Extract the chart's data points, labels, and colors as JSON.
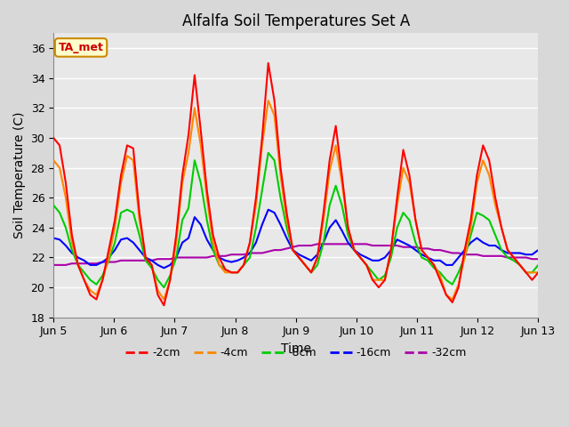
{
  "title": "Alfalfa Soil Temperatures Set A",
  "xlabel": "Time",
  "ylabel": "Soil Temperature (C)",
  "annotation": "TA_met",
  "annotation_color": "#cc0000",
  "annotation_bg": "#ffffcc",
  "annotation_border": "#cc8800",
  "ylim": [
    18,
    37
  ],
  "yticks": [
    18,
    20,
    22,
    24,
    26,
    28,
    30,
    32,
    34,
    36
  ],
  "fig_bg_color": "#d8d8d8",
  "plot_bg": "#e8e8e8",
  "grid_color": "#ffffff",
  "line_colors": {
    "-2cm": "#ff0000",
    "-4cm": "#ff8800",
    "-8cm": "#00cc00",
    "-16cm": "#0000ff",
    "-32cm": "#aa00aa"
  },
  "legend_labels": [
    "-2cm",
    "-4cm",
    "-8cm",
    "-16cm",
    "-32cm"
  ],
  "t_2cm": [
    30.0,
    29.5,
    27.0,
    23.5,
    21.5,
    20.5,
    19.5,
    19.2,
    20.5,
    22.5,
    24.5,
    27.5,
    29.5,
    29.3,
    25.0,
    22.0,
    21.5,
    19.5,
    18.8,
    20.5,
    23.5,
    27.5,
    30.2,
    34.2,
    30.5,
    26.5,
    23.5,
    22.0,
    21.2,
    21.0,
    21.0,
    21.5,
    23.0,
    26.0,
    30.0,
    35.0,
    32.5,
    28.0,
    25.0,
    22.5,
    22.0,
    21.5,
    21.0,
    22.0,
    25.0,
    28.5,
    30.8,
    27.5,
    24.0,
    22.5,
    22.0,
    21.5,
    20.5,
    20.0,
    20.5,
    22.5,
    26.0,
    29.2,
    27.5,
    24.5,
    22.5,
    22.0,
    21.5,
    20.5,
    19.5,
    19.0,
    20.0,
    22.5,
    24.5,
    27.5,
    29.5,
    28.5,
    26.0,
    24.0,
    22.5,
    22.0,
    21.5,
    21.0,
    20.5,
    21.0
  ],
  "t_4cm": [
    28.5,
    28.0,
    26.0,
    23.0,
    21.5,
    20.5,
    19.8,
    19.5,
    20.5,
    22.0,
    24.0,
    27.0,
    28.8,
    28.5,
    24.5,
    22.0,
    21.5,
    19.8,
    19.2,
    20.5,
    23.0,
    27.0,
    29.0,
    32.0,
    29.5,
    26.0,
    23.0,
    21.5,
    21.0,
    21.0,
    21.0,
    21.5,
    23.0,
    25.5,
    29.5,
    32.5,
    31.5,
    27.5,
    24.5,
    22.5,
    22.0,
    21.5,
    21.0,
    22.0,
    24.5,
    27.8,
    29.5,
    27.0,
    24.0,
    22.5,
    22.0,
    21.5,
    20.5,
    20.5,
    20.5,
    22.5,
    25.5,
    28.0,
    27.0,
    24.5,
    22.5,
    22.0,
    21.5,
    20.8,
    19.5,
    19.2,
    20.2,
    22.0,
    24.0,
    27.0,
    28.5,
    27.5,
    25.5,
    24.0,
    22.5,
    22.0,
    21.5,
    21.0,
    21.0,
    21.0
  ],
  "t_8cm": [
    25.5,
    25.0,
    24.0,
    22.5,
    21.5,
    21.0,
    20.5,
    20.2,
    20.8,
    21.8,
    23.0,
    25.0,
    25.2,
    25.0,
    23.5,
    21.8,
    21.3,
    20.5,
    20.0,
    20.8,
    22.0,
    24.5,
    25.3,
    28.5,
    27.0,
    24.5,
    22.5,
    21.5,
    21.2,
    21.0,
    21.0,
    21.5,
    22.0,
    24.0,
    26.5,
    29.0,
    28.5,
    26.0,
    24.0,
    22.5,
    22.0,
    21.5,
    21.0,
    21.5,
    23.0,
    25.5,
    26.8,
    25.5,
    23.5,
    22.5,
    22.0,
    21.5,
    21.0,
    20.5,
    20.8,
    22.0,
    24.0,
    25.0,
    24.5,
    23.0,
    22.0,
    21.8,
    21.3,
    21.0,
    20.5,
    20.2,
    21.0,
    22.0,
    23.5,
    25.0,
    24.8,
    24.5,
    23.5,
    22.5,
    22.0,
    21.8,
    21.5,
    21.0,
    21.0,
    21.5
  ],
  "t_16cm": [
    23.3,
    23.2,
    22.8,
    22.3,
    22.0,
    21.8,
    21.5,
    21.5,
    21.7,
    22.0,
    22.5,
    23.2,
    23.3,
    23.0,
    22.5,
    22.0,
    21.8,
    21.5,
    21.3,
    21.5,
    22.0,
    23.0,
    23.3,
    24.7,
    24.2,
    23.2,
    22.5,
    22.0,
    21.8,
    21.7,
    21.8,
    22.0,
    22.3,
    23.0,
    24.2,
    25.2,
    25.0,
    24.2,
    23.3,
    22.5,
    22.2,
    22.0,
    21.8,
    22.2,
    23.0,
    24.0,
    24.5,
    23.8,
    23.0,
    22.5,
    22.2,
    22.0,
    21.8,
    21.8,
    22.0,
    22.5,
    23.2,
    23.0,
    22.8,
    22.5,
    22.2,
    22.0,
    21.8,
    21.8,
    21.5,
    21.5,
    22.0,
    22.5,
    23.0,
    23.3,
    23.0,
    22.8,
    22.8,
    22.5,
    22.3,
    22.3,
    22.3,
    22.2,
    22.2,
    22.5
  ],
  "t_32cm": [
    21.5,
    21.5,
    21.5,
    21.6,
    21.6,
    21.6,
    21.6,
    21.6,
    21.7,
    21.7,
    21.7,
    21.8,
    21.8,
    21.8,
    21.8,
    21.8,
    21.8,
    21.9,
    21.9,
    21.9,
    22.0,
    22.0,
    22.0,
    22.0,
    22.0,
    22.0,
    22.1,
    22.1,
    22.1,
    22.2,
    22.2,
    22.2,
    22.3,
    22.3,
    22.3,
    22.4,
    22.5,
    22.5,
    22.6,
    22.7,
    22.8,
    22.8,
    22.8,
    22.9,
    22.9,
    22.9,
    22.9,
    22.9,
    22.9,
    22.9,
    22.9,
    22.9,
    22.8,
    22.8,
    22.8,
    22.8,
    22.8,
    22.7,
    22.7,
    22.7,
    22.6,
    22.6,
    22.5,
    22.5,
    22.4,
    22.3,
    22.3,
    22.2,
    22.2,
    22.2,
    22.1,
    22.1,
    22.1,
    22.1,
    22.0,
    22.0,
    22.0,
    22.0,
    21.9,
    21.9
  ]
}
